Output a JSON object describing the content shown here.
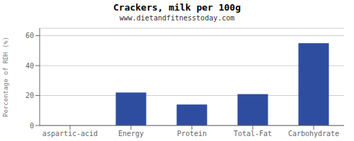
{
  "chart_data": {
    "type": "bar",
    "title": "Crackers, milk per 100g",
    "subtitle": "www.dietandfitnesstoday.com",
    "categories": [
      "aspartic-acid",
      "Energy",
      "Protein",
      "Total-Fat",
      "Carbohydrate"
    ],
    "values": [
      0,
      22,
      14,
      21,
      55
    ],
    "color": "#2e4d9e",
    "ylabel": "Percentage of RDH (%)",
    "ylim": [
      0,
      65
    ],
    "yticks": [
      0,
      20,
      40,
      60
    ],
    "grid": true
  }
}
